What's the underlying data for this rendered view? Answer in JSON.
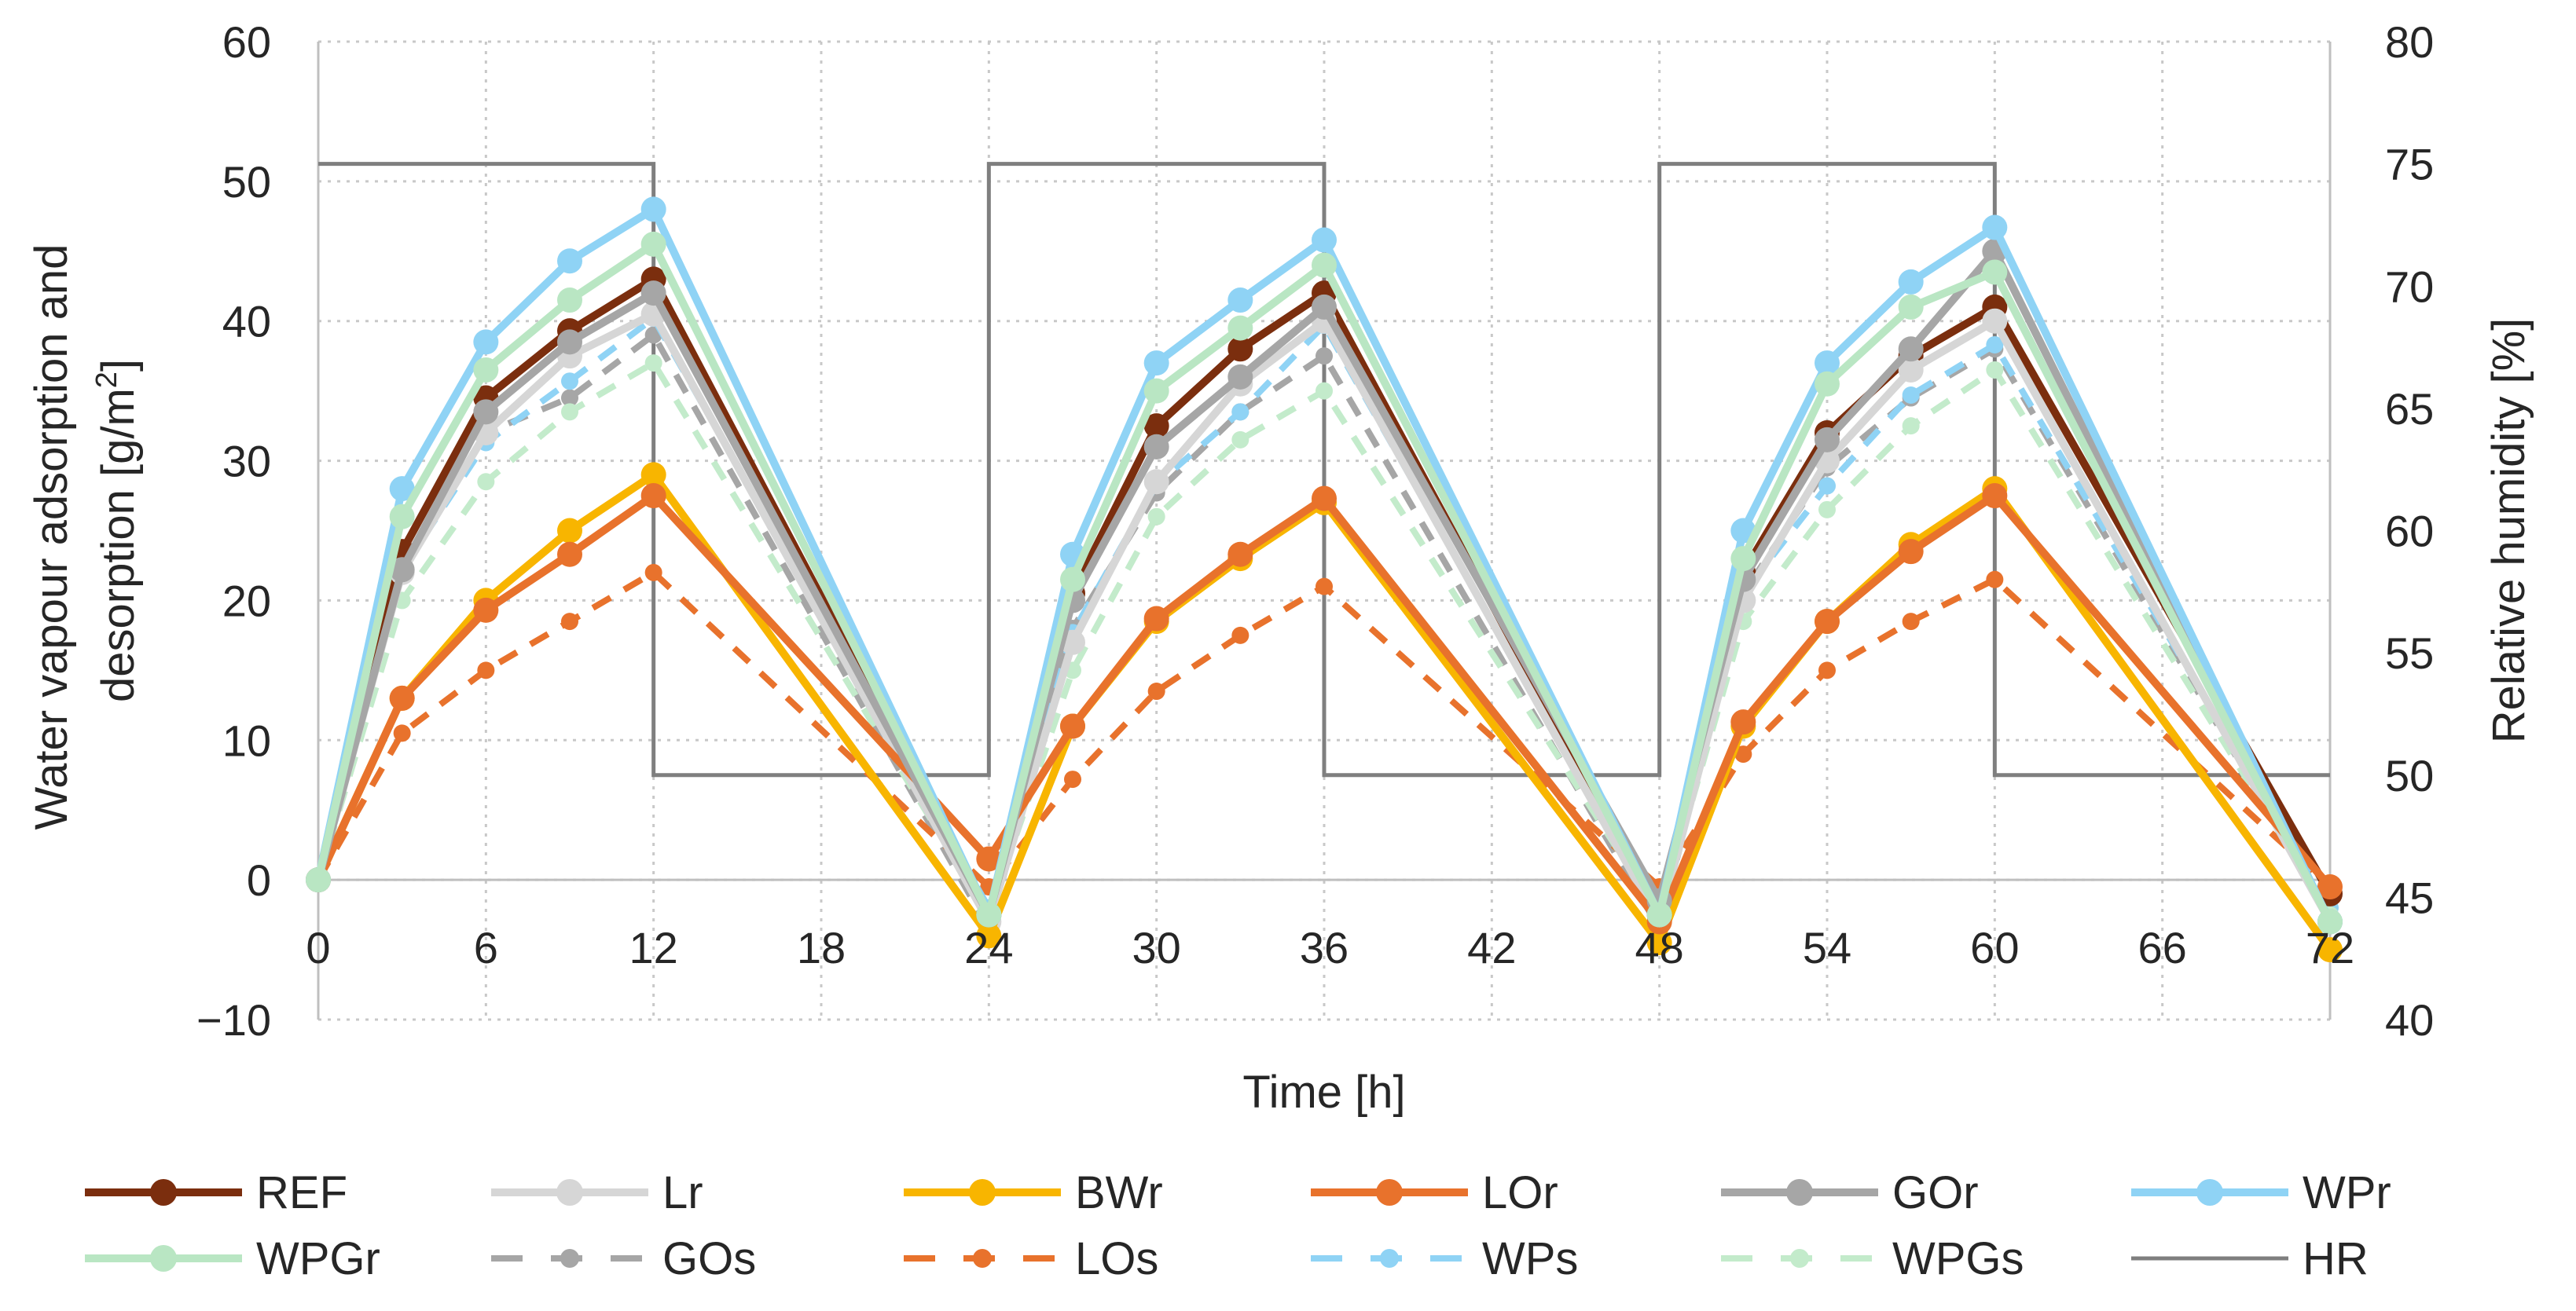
{
  "chart_data": {
    "type": "line",
    "xlabel": "Time [h]",
    "ylabel_left_line1": "Water vapour adsorption and",
    "ylabel_left_line2": "desorption [g/m",
    "ylabel_left_sup": "2",
    "ylabel_left_end": "]",
    "ylabel_right": "Relative humidity  [%]",
    "xlim": [
      0,
      72
    ],
    "ylim_left": [
      -10,
      60
    ],
    "ylim_right": [
      40,
      80
    ],
    "grid": true,
    "legend_position": "bottom",
    "x_ticks": [
      "0",
      "6",
      "12",
      "18",
      "24",
      "30",
      "36",
      "42",
      "48",
      "54",
      "60",
      "66",
      "72"
    ],
    "y_ticks_left": [
      "−10",
      "0",
      "10",
      "20",
      "30",
      "40",
      "50",
      "60"
    ],
    "y_ticks_right": [
      "40",
      "45",
      "50",
      "55",
      "60",
      "65",
      "70",
      "75",
      "80"
    ],
    "x": [
      0,
      3,
      6,
      9,
      12,
      24,
      27,
      30,
      33,
      36,
      48,
      51,
      54,
      57,
      60,
      72
    ],
    "series": [
      {
        "name": "REF",
        "color": "#7b2e0e",
        "style": "solid",
        "values": [
          0,
          23.5,
          34.5,
          39.3,
          43,
          -2.5,
          20.5,
          32.5,
          38,
          42,
          -2.5,
          22,
          32,
          37.5,
          41,
          -1
        ]
      },
      {
        "name": "Lr",
        "color": "#d6d6d6",
        "style": "solid",
        "values": [
          0,
          22,
          32,
          37.5,
          40.5,
          -3,
          17,
          28.5,
          35.5,
          40,
          -3,
          20,
          30,
          36.5,
          40,
          -3
        ]
      },
      {
        "name": "BWr",
        "color": "#f8b500",
        "style": "solid",
        "values": [
          0,
          13,
          20,
          25,
          29,
          -4,
          11,
          18.5,
          23,
          27,
          -4.5,
          11,
          18.5,
          24,
          28,
          -5
        ]
      },
      {
        "name": "LOr",
        "color": "#e8722c",
        "style": "solid",
        "values": [
          0,
          13,
          19.3,
          23.3,
          27.5,
          1.5,
          11,
          18.7,
          23.3,
          27.3,
          -3,
          11.3,
          18.5,
          23.5,
          27.5,
          -0.5
        ]
      },
      {
        "name": "GOr",
        "color": "#a6a6a6",
        "style": "solid",
        "values": [
          0,
          22.2,
          33.5,
          38.5,
          42,
          -2.5,
          20,
          31,
          36,
          41,
          -1.5,
          21.5,
          31.5,
          38,
          45,
          -3
        ]
      },
      {
        "name": "WPr",
        "color": "#8fd3f5",
        "style": "solid",
        "values": [
          0,
          28,
          38.5,
          44.3,
          48,
          -2.5,
          23.3,
          37,
          41.5,
          45.8,
          -2.5,
          25,
          37,
          42.8,
          46.7,
          -3
        ]
      },
      {
        "name": "WPGr",
        "color": "#b9e6c3",
        "style": "solid",
        "values": [
          0,
          26,
          36.5,
          41.5,
          45.5,
          -2.5,
          21.5,
          35,
          39.5,
          44,
          -2.5,
          23,
          35.5,
          41,
          43.5,
          -3
        ]
      },
      {
        "name": "GOs",
        "color": "#a6a6a6",
        "style": "dashed",
        "values": [
          0,
          22,
          32,
          34.5,
          39,
          -3.5,
          18,
          27.7,
          33.5,
          37.5,
          -3.5,
          20.5,
          29.5,
          34.5,
          38,
          -2.5
        ]
      },
      {
        "name": "LOs",
        "color": "#e8722c",
        "style": "dashed",
        "values": [
          0,
          10.5,
          15,
          18.5,
          22,
          -0.5,
          7.2,
          13.5,
          17.5,
          21,
          -0.5,
          9,
          15,
          18.5,
          21.5,
          -0.5
        ]
      },
      {
        "name": "WPs",
        "color": "#8fd3f5",
        "style": "dashed",
        "values": [
          0,
          22.2,
          31.3,
          35.7,
          40.2,
          -2,
          17.7,
          28.3,
          33.5,
          39.7,
          -2.5,
          20.5,
          28.2,
          34.7,
          38.3,
          -2
        ]
      },
      {
        "name": "WPGs",
        "color": "#c3ebcb",
        "style": "dashed",
        "values": [
          0,
          20,
          28.5,
          33.5,
          37,
          -2.5,
          15,
          26,
          31.5,
          35,
          -2.5,
          18.5,
          26.5,
          32.5,
          36.5,
          -2.5
        ]
      }
    ],
    "hr_series": {
      "name": "HR",
      "color": "#7f7f7f",
      "axis": "right",
      "x": [
        0,
        12,
        12,
        24,
        24,
        36,
        36,
        48,
        48,
        60,
        60,
        72
      ],
      "values": [
        75,
        75,
        50,
        50,
        75,
        75,
        50,
        50,
        75,
        75,
        50,
        50
      ]
    },
    "legend_order": [
      "REF",
      "Lr",
      "BWr",
      "LOr",
      "GOr",
      "WPr",
      "WPGr",
      "GOs",
      "LOs",
      "WPs",
      "WPGs",
      "HR"
    ]
  }
}
